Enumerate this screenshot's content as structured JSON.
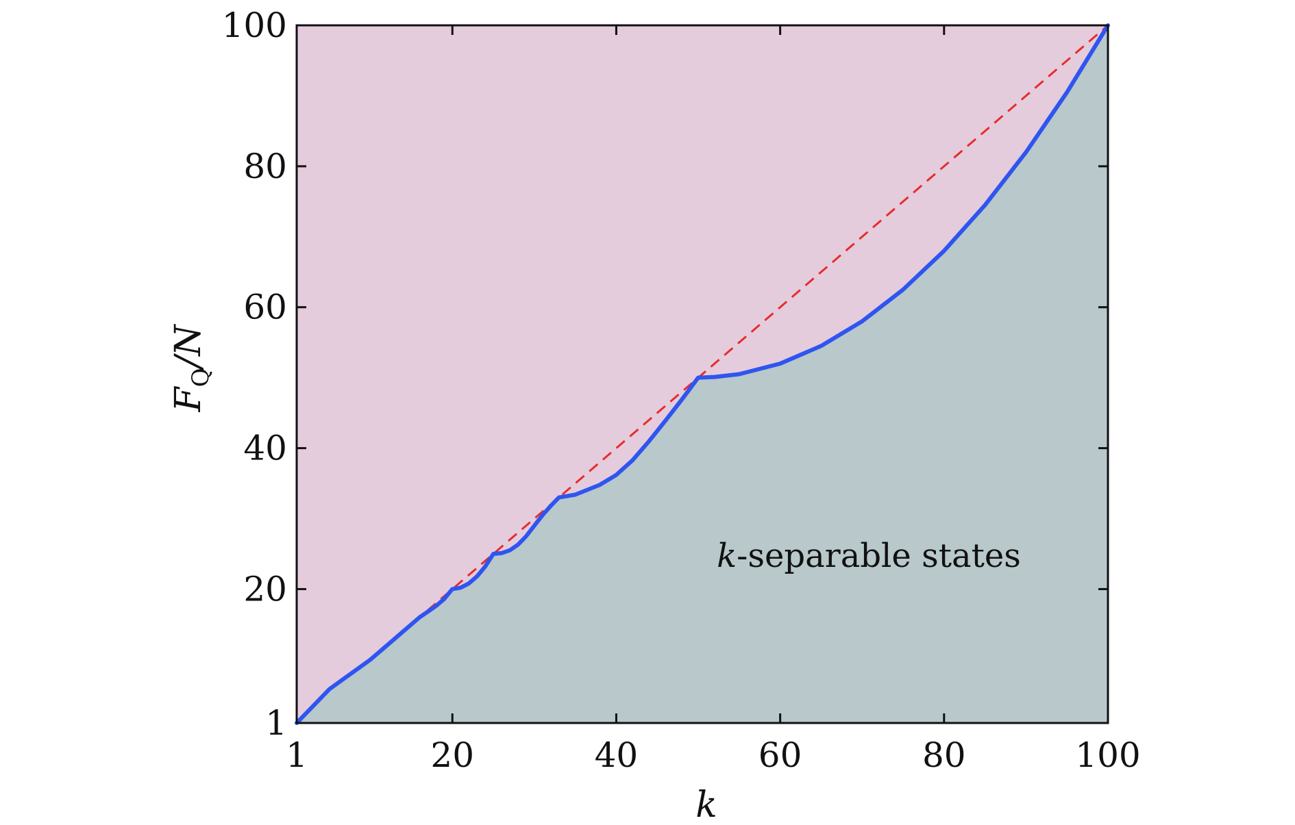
{
  "chart_data": {
    "type": "area",
    "title": "",
    "xlabel": "k",
    "ylabel": {
      "main": "F",
      "sub": "Q",
      "rest": "/N"
    },
    "xlim": [
      1,
      100
    ],
    "ylim": [
      1,
      100
    ],
    "xticks": [
      1,
      20,
      40,
      60,
      80,
      100
    ],
    "yticks": [
      1,
      20,
      40,
      60,
      80,
      100
    ],
    "xtick_labels": [
      "1",
      "20",
      "40",
      "60",
      "80",
      "100"
    ],
    "ytick_labels": [
      "1",
      "20",
      "40",
      "60",
      "80",
      "100"
    ],
    "grid": false,
    "annotations": [
      {
        "text_italic": "k",
        "text": "-separable states"
      }
    ],
    "series": [
      {
        "style": "solid",
        "color": "#2f55f0",
        "fill_below": "#b8c8cb",
        "x": [
          1,
          5,
          10,
          12,
          14,
          16,
          17,
          18,
          19,
          20,
          21,
          22,
          23,
          24,
          25,
          26,
          27,
          28,
          29,
          30,
          31,
          32,
          33,
          34,
          35,
          38,
          40,
          42,
          44,
          46,
          48,
          50,
          52,
          55,
          60,
          65,
          70,
          75,
          80,
          85,
          90,
          95,
          100
        ],
        "y": [
          1,
          5.8,
          10.0,
          12.0,
          14.0,
          16.0,
          16.8,
          17.6,
          18.6,
          20.0,
          20.2,
          20.8,
          21.8,
          23.2,
          25.0,
          25.1,
          25.5,
          26.3,
          27.5,
          29.0,
          30.5,
          31.8,
          33.0,
          33.2,
          33.4,
          34.8,
          36.2,
          38.3,
          41.0,
          43.9,
          46.9,
          50.0,
          50.1,
          50.5,
          52.0,
          54.5,
          58.0,
          62.5,
          68.0,
          74.5,
          82.0,
          90.5,
          100.0
        ]
      },
      {
        "style": "dashed",
        "color": "#e82c2c",
        "x": [
          12,
          100
        ],
        "y": [
          12,
          100
        ]
      }
    ],
    "colors": {
      "region_above": "#e4ccdd",
      "region_below": "#b8c8cb"
    }
  }
}
